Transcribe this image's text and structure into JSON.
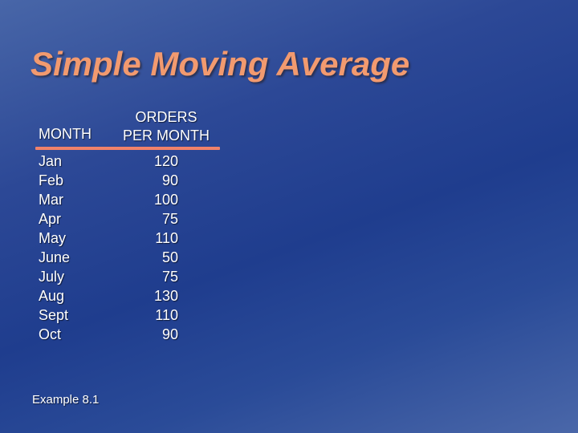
{
  "slide": {
    "title": "Simple Moving Average",
    "table": {
      "header_month": "MONTH",
      "header_orders_line1": "ORDERS",
      "header_orders_line2": "PER MONTH",
      "rows": [
        {
          "month": "Jan",
          "orders": "120"
        },
        {
          "month": "Feb",
          "orders": "90"
        },
        {
          "month": "Mar",
          "orders": "100"
        },
        {
          "month": "Apr",
          "orders": "75"
        },
        {
          "month": "May",
          "orders": "110"
        },
        {
          "month": "June",
          "orders": "50"
        },
        {
          "month": "July",
          "orders": "75"
        },
        {
          "month": "Aug",
          "orders": "130"
        },
        {
          "month": "Sept",
          "orders": "110"
        },
        {
          "month": "Oct",
          "orders": "90"
        }
      ]
    },
    "footer": "Example 8.1"
  },
  "colors": {
    "title": "#f29a6f",
    "rule": "#f0826a",
    "text": "#ffffff",
    "background": "#1f3d8e"
  }
}
